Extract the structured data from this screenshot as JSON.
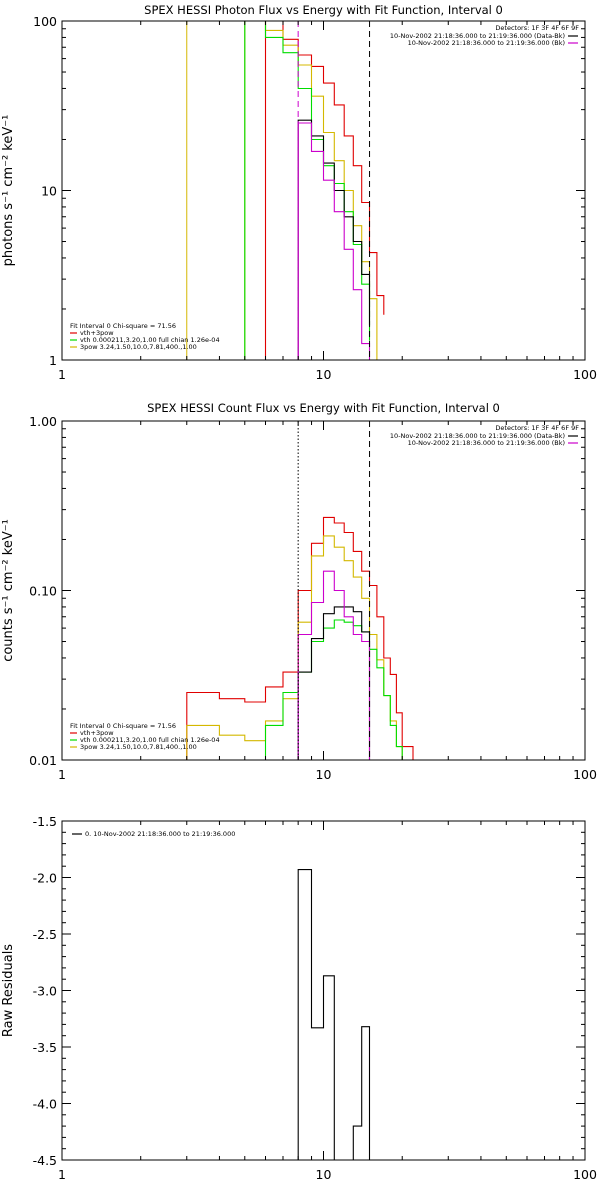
{
  "chart_data": [
    {
      "type": "line",
      "title": "SPEX HESSI Photon Flux vs Energy with Fit Function, Interval 0",
      "ylabel": "photons s⁻¹ cm⁻² keV⁻¹",
      "xlabel": "",
      "xscale": "log",
      "yscale": "log",
      "xlim": [
        1,
        100
      ],
      "ylim": [
        1,
        100
      ],
      "xticks": [
        1,
        10,
        100
      ],
      "xtick_labels": [
        "1",
        "10",
        "100"
      ],
      "yticks": [
        1,
        10,
        100
      ],
      "ytick_labels": [
        "1",
        "10",
        "100"
      ],
      "vlines": [
        {
          "x": 3,
          "color": "#d4b800",
          "style": "solid"
        },
        {
          "x": 8,
          "color": "#cc00cc",
          "style": "dashed"
        },
        {
          "x": 15,
          "color": "#000000",
          "style": "dashed"
        }
      ],
      "legend_right": {
        "detectors": "Detectors: 1F 3F 4F 6F 9F",
        "entries": [
          {
            "label": "10-Nov-2002 21:18:36.000 to 21:19:36.000 (Data-Bk)",
            "color": "#000000"
          },
          {
            "label": "10-Nov-2002 21:18:36.000 to 21:19:36.000 (Bk)",
            "color": "#cc00cc"
          }
        ]
      },
      "legend_left": {
        "header": "Fit Interval 0   Chi-square = 71.56",
        "entries": [
          {
            "label": "vth+3pow",
            "color": "#e00000"
          },
          {
            "label": "vth 0.000211,3.20,1.00  full chian 1.26e-04",
            "color": "#00dd00"
          },
          {
            "label": "3pow 3.24,1.50,10.0,7.81,400.,1.00",
            "color": "#d4b800"
          }
        ]
      },
      "series": [
        {
          "color": "#e00000",
          "edges": [
            6,
            7,
            8,
            9,
            10,
            11,
            12,
            13,
            14,
            15,
            16,
            17
          ],
          "values": [
            100,
            78,
            63,
            54,
            43,
            32,
            21,
            14,
            8.5,
            4.3,
            2.4,
            1.85
          ]
        },
        {
          "color": "#d4b800",
          "edges": [
            5,
            6,
            7,
            8,
            9,
            10,
            11,
            12,
            13,
            14,
            15,
            16,
            17
          ],
          "values": [
            100,
            88,
            72,
            55,
            36,
            22,
            15,
            10,
            6.2,
            3.8,
            2.3,
            1.0
          ]
        },
        {
          "color": "#00dd00",
          "edges": [
            5,
            6,
            7,
            8,
            9,
            10,
            11,
            12,
            13,
            14,
            15
          ],
          "values": [
            100,
            80,
            65,
            40,
            20,
            14,
            11,
            7.5,
            4.8,
            2.8,
            1.3
          ]
        },
        {
          "color": "#000000",
          "edges": [
            8,
            9,
            10,
            11,
            12,
            13,
            14,
            15
          ],
          "values": [
            26,
            21,
            14.5,
            10,
            7,
            5,
            3.2,
            1.6
          ]
        },
        {
          "color": "#cc00cc",
          "edges": [
            8,
            9,
            10,
            11,
            12,
            13,
            14,
            15
          ],
          "values": [
            25,
            17,
            11.5,
            7.5,
            4.5,
            2.6,
            1.25,
            1.0
          ]
        }
      ]
    },
    {
      "type": "line",
      "title": "SPEX HESSI Count Flux vs Energy with Fit Function, Interval 0",
      "ylabel": "counts s⁻¹ cm⁻² keV⁻¹",
      "xlabel": "",
      "xscale": "log",
      "yscale": "log",
      "xlim": [
        1,
        100
      ],
      "ylim": [
        0.01,
        1
      ],
      "xticks": [
        1,
        10,
        100
      ],
      "xtick_labels": [
        "1",
        "10",
        "100"
      ],
      "yticks": [
        0.01,
        0.1,
        1
      ],
      "ytick_labels": [
        "0.01",
        "0.10",
        "1.00"
      ],
      "vlines": [
        {
          "x": 8,
          "color": "#000000",
          "style": "dotted"
        },
        {
          "x": 15,
          "color": "#000000",
          "style": "dashed"
        }
      ],
      "legend_right": {
        "detectors": "Detectors: 1F 3F 4F 6F 9F",
        "entries": [
          {
            "label": "10-Nov-2002 21:18:36.000 to 21:19:36.000 (Data-Bk)",
            "color": "#000000"
          },
          {
            "label": "10-Nov-2002 21:18:36.000 to 21:19:36.000 (Bk)",
            "color": "#cc00cc"
          }
        ]
      },
      "legend_left": {
        "header": "Fit Interval 0   Chi-square = 71.56",
        "entries": [
          {
            "label": "vth+3pow",
            "color": "#e00000"
          },
          {
            "label": "vth 0.000211,3.20,1.00  full chian 1.26e-04",
            "color": "#00dd00"
          },
          {
            "label": "3pow 3.24,1.50,10.0,7.81,400.,1.00",
            "color": "#d4b800"
          }
        ]
      },
      "series": [
        {
          "color": "#e00000",
          "edges": [
            3,
            4,
            5,
            6,
            7,
            8,
            9,
            10,
            11,
            12,
            13,
            14,
            15,
            16,
            17,
            18,
            19,
            20,
            22,
            24
          ],
          "values": [
            0.025,
            0.023,
            0.022,
            0.027,
            0.033,
            0.1,
            0.19,
            0.27,
            0.25,
            0.22,
            0.17,
            0.13,
            0.107,
            0.07,
            0.04,
            0.032,
            0.019,
            0.012,
            0.01
          ]
        },
        {
          "color": "#d4b800",
          "edges": [
            3,
            4,
            5,
            6,
            7,
            8,
            9,
            10,
            11,
            12,
            13,
            14,
            15,
            16,
            17,
            18,
            19,
            20,
            22
          ],
          "values": [
            0.016,
            0.014,
            0.013,
            0.017,
            0.023,
            0.065,
            0.16,
            0.21,
            0.18,
            0.15,
            0.12,
            0.09,
            0.055,
            0.039,
            0.024,
            0.017,
            0.012,
            0.01
          ]
        },
        {
          "color": "#00dd00",
          "edges": [
            6,
            7,
            8,
            9,
            10,
            11,
            12,
            13,
            14,
            15,
            16,
            17,
            18,
            19,
            20
          ],
          "values": [
            0.016,
            0.025,
            0.033,
            0.05,
            0.06,
            0.067,
            0.065,
            0.062,
            0.057,
            0.045,
            0.035,
            0.024,
            0.016,
            0.012
          ]
        },
        {
          "color": "#000000",
          "edges": [
            8,
            9,
            10,
            11,
            12,
            13,
            14,
            15
          ],
          "values": [
            0.033,
            0.052,
            0.073,
            0.08,
            0.08,
            0.075,
            0.057
          ]
        },
        {
          "color": "#cc00cc",
          "edges": [
            8,
            9,
            10,
            11,
            12,
            13,
            14,
            15
          ],
          "values": [
            0.055,
            0.085,
            0.13,
            0.1,
            0.07,
            0.055,
            0.05
          ]
        }
      ]
    },
    {
      "type": "line",
      "title": "",
      "ylabel": "Raw Residuals",
      "xlabel": "",
      "xscale": "log",
      "yscale": "linear",
      "xlim": [
        1,
        100
      ],
      "ylim": [
        -4.5,
        -1.5
      ],
      "xticks": [
        1,
        10,
        100
      ],
      "xtick_labels": [
        "1",
        "10",
        "100"
      ],
      "yticks": [
        -1.5,
        -2.0,
        -2.5,
        -3.0,
        -3.5,
        -4.0,
        -4.5
      ],
      "ytick_labels": [
        "-1.5",
        "-2.0",
        "-2.5",
        "-3.0",
        "-3.5",
        "-4.0",
        "-4.5"
      ],
      "legend": [
        {
          "label": "0. 10-Nov-2002 21:18:36.000 to 21:19:36.000",
          "color": "#000000"
        }
      ],
      "series": [
        {
          "color": "#000000",
          "edges": [
            8,
            9,
            10,
            11,
            12,
            13,
            14,
            15
          ],
          "values": [
            -1.93,
            -3.33,
            -2.87,
            -4.5,
            -4.5,
            -4.2,
            -3.32
          ]
        }
      ]
    }
  ]
}
